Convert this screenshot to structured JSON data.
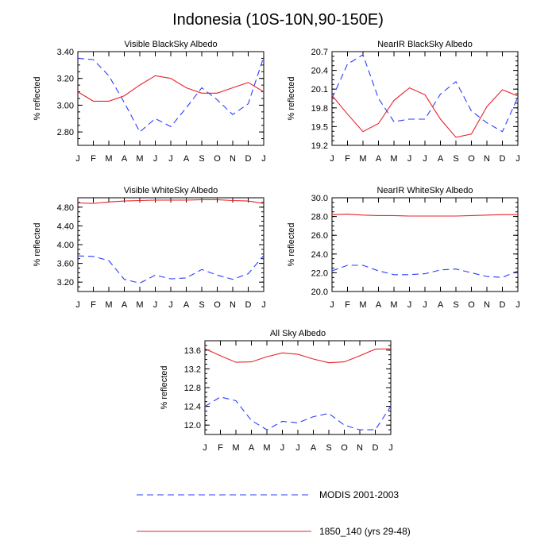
{
  "figure_title": "Indonesia (10S-10N,90-150E)",
  "colors": {
    "modis": "#2b3dff",
    "model": "#e8232a",
    "axis": "#000000"
  },
  "legend": [
    {
      "name": "MODIS 2001-2003",
      "style": "dashed",
      "color": "#2b3dff"
    },
    {
      "name": "1850_140 (yrs 29-48)",
      "style": "solid",
      "color": "#e8232a"
    }
  ],
  "chart_data": [
    {
      "type": "line",
      "title": "Visible BlackSky Albedo",
      "ylabel": "% reflected",
      "ylim": [
        2.7,
        3.4
      ],
      "yticks": [
        2.8,
        3.0,
        3.2,
        3.4
      ],
      "ytick_labels": [
        "2.80",
        "3.00",
        "3.20",
        "3.40"
      ],
      "x": [
        "J",
        "F",
        "M",
        "A",
        "M",
        "J",
        "J",
        "A",
        "S",
        "O",
        "N",
        "D",
        "J"
      ],
      "series": [
        {
          "name": "MODIS 2001-2003",
          "values": [
            3.35,
            3.34,
            3.22,
            3.02,
            2.8,
            2.9,
            2.84,
            2.98,
            3.13,
            3.04,
            2.93,
            3.01,
            3.36
          ]
        },
        {
          "name": "1850_140 (yrs 29-48)",
          "values": [
            3.1,
            3.03,
            3.03,
            3.07,
            3.15,
            3.22,
            3.2,
            3.13,
            3.09,
            3.09,
            3.13,
            3.17,
            3.1
          ]
        }
      ]
    },
    {
      "type": "line",
      "title": "NearIR BlackSky Albedo",
      "ylabel": "% reflected",
      "ylim": [
        19.2,
        20.7
      ],
      "yticks": [
        19.2,
        19.5,
        19.8,
        20.1,
        20.4,
        20.7
      ],
      "ytick_labels": [
        "19.2",
        "19.5",
        "19.8",
        "20.1",
        "20.4",
        "20.7"
      ],
      "x": [
        "J",
        "F",
        "M",
        "A",
        "M",
        "J",
        "J",
        "A",
        "S",
        "O",
        "N",
        "D",
        "J"
      ],
      "series": [
        {
          "name": "MODIS 2001-2003",
          "values": [
            19.95,
            20.5,
            20.65,
            19.95,
            19.58,
            19.62,
            19.62,
            20.02,
            20.22,
            19.75,
            19.56,
            19.42,
            19.97
          ]
        },
        {
          "name": "1850_140 (yrs 29-48)",
          "values": [
            20.0,
            19.7,
            19.42,
            19.55,
            19.92,
            20.12,
            20.01,
            19.62,
            19.33,
            19.38,
            19.82,
            20.09,
            19.99
          ]
        }
      ]
    },
    {
      "type": "line",
      "title": "Visible WhiteSky Albedo",
      "ylabel": "% reflected",
      "ylim": [
        3.0,
        5.0
      ],
      "yticks": [
        3.2,
        3.6,
        4.0,
        4.4,
        4.8
      ],
      "ytick_labels": [
        "3.20",
        "3.60",
        "4.00",
        "4.40",
        "4.80"
      ],
      "x": [
        "J",
        "F",
        "M",
        "A",
        "M",
        "J",
        "J",
        "A",
        "S",
        "O",
        "N",
        "D",
        "J"
      ],
      "series": [
        {
          "name": "MODIS 2001-2003",
          "values": [
            3.76,
            3.75,
            3.66,
            3.26,
            3.18,
            3.35,
            3.27,
            3.29,
            3.47,
            3.35,
            3.26,
            3.38,
            3.77
          ]
        },
        {
          "name": "1850_140 (yrs 29-48)",
          "values": [
            4.89,
            4.88,
            4.91,
            4.93,
            4.94,
            4.95,
            4.95,
            4.95,
            4.96,
            4.96,
            4.94,
            4.93,
            4.88
          ]
        }
      ]
    },
    {
      "type": "line",
      "title": "NearIR WhiteSky Albedo",
      "ylabel": "% reflected",
      "ylim": [
        20.0,
        30.0
      ],
      "yticks": [
        20.0,
        22.0,
        24.0,
        26.0,
        28.0,
        30.0
      ],
      "ytick_labels": [
        "20.0",
        "22.0",
        "24.0",
        "26.0",
        "28.0",
        "30.0"
      ],
      "x": [
        "J",
        "F",
        "M",
        "A",
        "M",
        "J",
        "J",
        "A",
        "S",
        "O",
        "N",
        "D",
        "J"
      ],
      "series": [
        {
          "name": "MODIS 2001-2003",
          "values": [
            22.2,
            22.8,
            22.8,
            22.2,
            21.8,
            21.8,
            21.9,
            22.3,
            22.4,
            22.0,
            21.6,
            21.5,
            22.2
          ]
        },
        {
          "name": "1850_140 (yrs 29-48)",
          "values": [
            28.2,
            28.25,
            28.15,
            28.1,
            28.1,
            28.05,
            28.05,
            28.05,
            28.05,
            28.1,
            28.15,
            28.2,
            28.2
          ]
        }
      ]
    },
    {
      "type": "line",
      "title": "All Sky Albedo",
      "ylabel": "% reflected",
      "ylim": [
        11.8,
        13.8
      ],
      "yticks": [
        12.0,
        12.4,
        12.8,
        13.2,
        13.6
      ],
      "ytick_labels": [
        "12.0",
        "12.4",
        "12.8",
        "13.2",
        "13.6"
      ],
      "x": [
        "J",
        "F",
        "M",
        "A",
        "M",
        "J",
        "J",
        "A",
        "S",
        "O",
        "N",
        "D",
        "J"
      ],
      "series": [
        {
          "name": "MODIS 2001-2003",
          "values": [
            12.4,
            12.6,
            12.52,
            12.1,
            11.9,
            12.08,
            12.05,
            12.18,
            12.25,
            12.0,
            11.9,
            11.9,
            12.4
          ]
        },
        {
          "name": "1850_140 (yrs 29-48)",
          "values": [
            13.63,
            13.48,
            13.34,
            13.35,
            13.46,
            13.54,
            13.51,
            13.41,
            13.33,
            13.35,
            13.48,
            13.62,
            13.63
          ]
        }
      ]
    }
  ]
}
